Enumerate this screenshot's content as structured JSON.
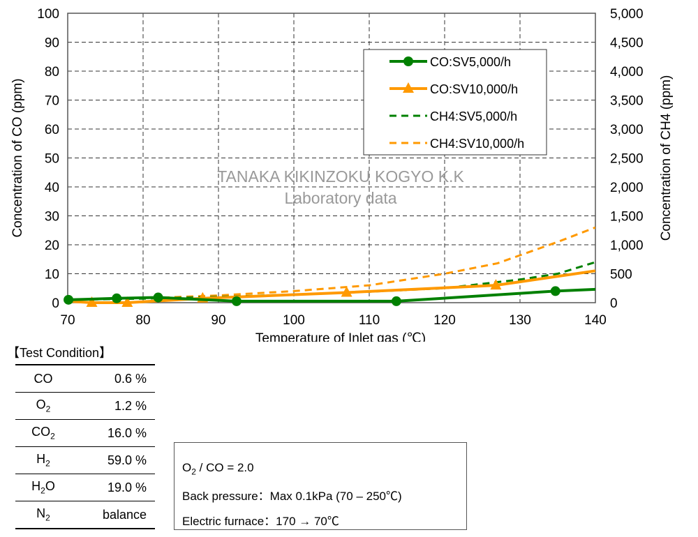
{
  "chart_data": {
    "type": "line",
    "xlabel": "Temperature of Inlet gas (℃)",
    "ylabel": "Concentration of CO (ppm)",
    "y2label": "Concentration of CH4 (ppm)",
    "xlim": [
      70,
      140
    ],
    "ylim": [
      0,
      100
    ],
    "y2lim": [
      0,
      5000
    ],
    "xticks": [
      "70",
      "80",
      "90",
      "100",
      "110",
      "120",
      "130",
      "140"
    ],
    "yticks": [
      "0",
      "10",
      "20",
      "30",
      "40",
      "50",
      "60",
      "70",
      "80",
      "90",
      "100"
    ],
    "y2ticks": [
      "0",
      "500",
      "1,000",
      "1,500",
      "2,000",
      "2,500",
      "3,000",
      "3,500",
      "4,000",
      "4,500",
      "5,000"
    ],
    "grid": true,
    "legend_placement": "top-right",
    "watermark": [
      "TANAKA KIKINZOKU KOGYO K.K",
      "Laboratory data"
    ],
    "series": [
      {
        "name": "CO:SV5,000/h",
        "axis": "left",
        "color": "#008000",
        "style": "solid",
        "marker": "circle",
        "x": [
          70.1,
          76.5,
          82,
          92.4,
          113.6,
          134.7,
          140
        ],
        "y": [
          1.0,
          1.5,
          1.8,
          0.5,
          0.5,
          4.0,
          4.6
        ],
        "markers": [
          true,
          true,
          true,
          true,
          true,
          true,
          false
        ]
      },
      {
        "name": "CO:SV10,000/h",
        "axis": "left",
        "color": "#FF9900",
        "style": "solid",
        "marker": "triangle",
        "x": [
          70,
          73.2,
          77.9,
          87.9,
          107,
          126.8,
          140
        ],
        "y": [
          0.5,
          0,
          0,
          1.5,
          3.5,
          6.0,
          11.0
        ],
        "markers": [
          false,
          true,
          true,
          true,
          true,
          true,
          false
        ]
      },
      {
        "name": "CH4:SV5,000/h",
        "axis": "right",
        "color": "#008000",
        "style": "dashed",
        "marker": "none",
        "x": [
          70,
          80,
          90,
          100,
          110,
          120,
          130,
          135,
          140
        ],
        "y": [
          50,
          70,
          100,
          140,
          190,
          250,
          400,
          500,
          700
        ]
      },
      {
        "name": "CH4:SV10,000/h",
        "axis": "right",
        "color": "#FF9900",
        "style": "dashed",
        "marker": "none",
        "x": [
          70,
          80,
          90,
          100,
          110,
          120,
          127,
          135,
          140
        ],
        "y": [
          50,
          75,
          125,
          200,
          300,
          500,
          680,
          1050,
          1300
        ]
      }
    ]
  },
  "conditions": {
    "title": "【Test Condition】",
    "rows": [
      {
        "gas": "CO",
        "sub": "",
        "value": "0.6 %"
      },
      {
        "gas": "O",
        "sub": "2",
        "value": "1.2 %"
      },
      {
        "gas": "CO",
        "sub": "2",
        "value": "16.0 %"
      },
      {
        "gas": "H",
        "sub": "2",
        "value": "59.0 %"
      },
      {
        "gas": "H",
        "sub": "2",
        "gas2": "O",
        "value": "19.0 %"
      },
      {
        "gas": "N",
        "sub": "2",
        "value": "balance"
      }
    ],
    "notes": {
      "ratio_a": "O",
      "ratio_sub": "2",
      "ratio_b": " / CO = 2.0",
      "back_pressure": "Back pressure：Max 0.1kPa (70 – 250℃)",
      "furnace": "Electric furnace：170 → 70℃"
    }
  }
}
